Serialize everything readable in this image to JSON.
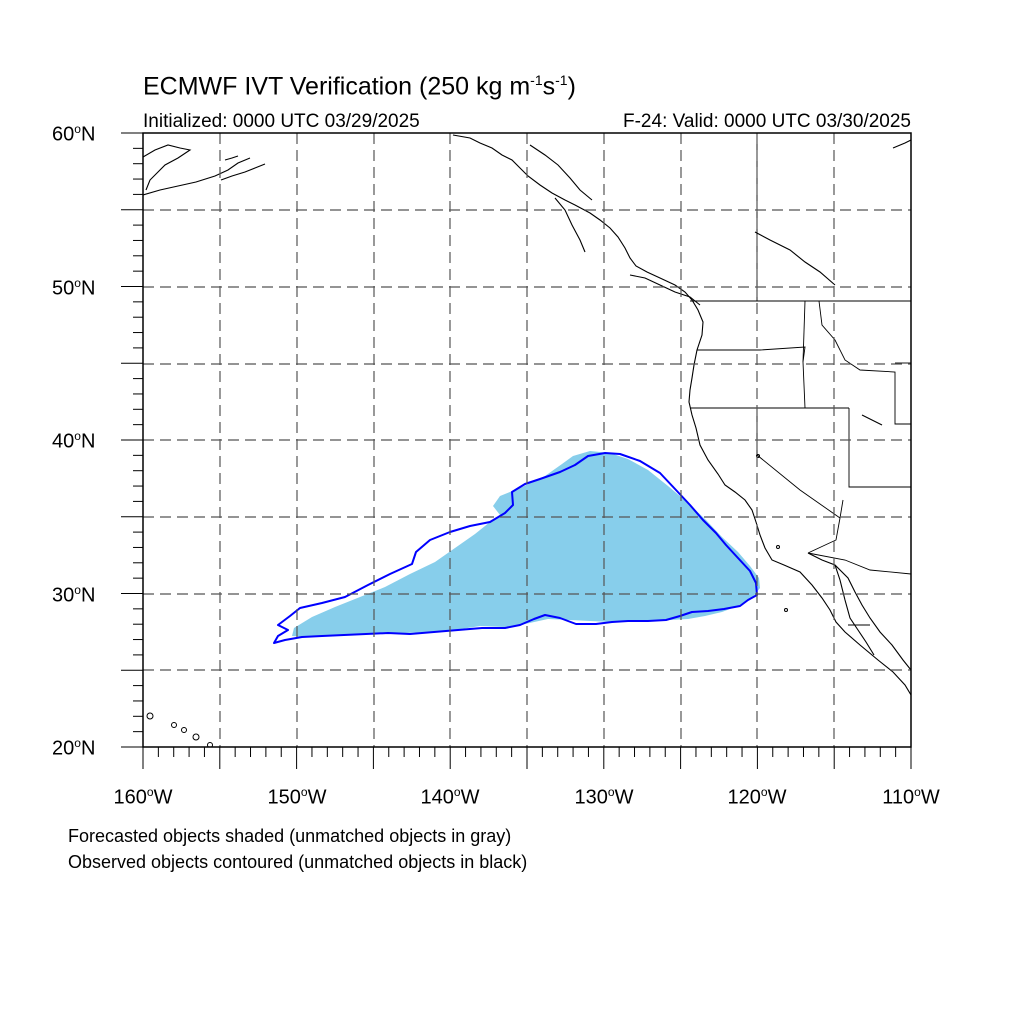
{
  "title": {
    "main": "ECMWF IVT Verification (250 kg m",
    "exp1": "-1",
    "mid": "s",
    "exp2": "-1",
    "end": ")"
  },
  "subtitle": {
    "initialized": "Initialized: 0000 UTC 03/29/2025",
    "valid": "F-24: Valid: 0000 UTC 03/30/2025"
  },
  "axes": {
    "lat_ticks": [
      {
        "value": "60",
        "deg": "o",
        "hemi": "N"
      },
      {
        "value": "50",
        "deg": "o",
        "hemi": "N"
      },
      {
        "value": "40",
        "deg": "o",
        "hemi": "N"
      },
      {
        "value": "30",
        "deg": "o",
        "hemi": "N"
      },
      {
        "value": "20",
        "deg": "o",
        "hemi": "N"
      }
    ],
    "lon_ticks": [
      {
        "value": "160",
        "deg": "o",
        "hemi": "W"
      },
      {
        "value": "150",
        "deg": "o",
        "hemi": "W"
      },
      {
        "value": "140",
        "deg": "o",
        "hemi": "W"
      },
      {
        "value": "130",
        "deg": "o",
        "hemi": "W"
      },
      {
        "value": "120",
        "deg": "o",
        "hemi": "W"
      },
      {
        "value": "110",
        "deg": "o",
        "hemi": "W"
      }
    ],
    "lat_range": [
      20,
      60
    ],
    "lon_range": [
      -160,
      -110
    ],
    "grid_interval_deg": 5,
    "grid": "dashed"
  },
  "colors": {
    "forecast_fill": "#87ceeb",
    "observed_contour": "#0000ff",
    "coastline": "#000000",
    "grid": "#555555"
  },
  "objects": {
    "forecast_shaded": {
      "matched": true,
      "lat_range": [
        27.2,
        39.3
      ],
      "lon_range": [
        -151.3,
        -119.8
      ]
    },
    "observed_contour": {
      "matched": true,
      "lat_range": [
        26.8,
        39.1
      ],
      "lon_range": [
        -151.9,
        -120.0
      ]
    }
  },
  "captions": {
    "forecast": "Forecasted objects shaded (unmatched objects in gray)",
    "observed": "Observed objects contoured (unmatched objects in black)"
  }
}
